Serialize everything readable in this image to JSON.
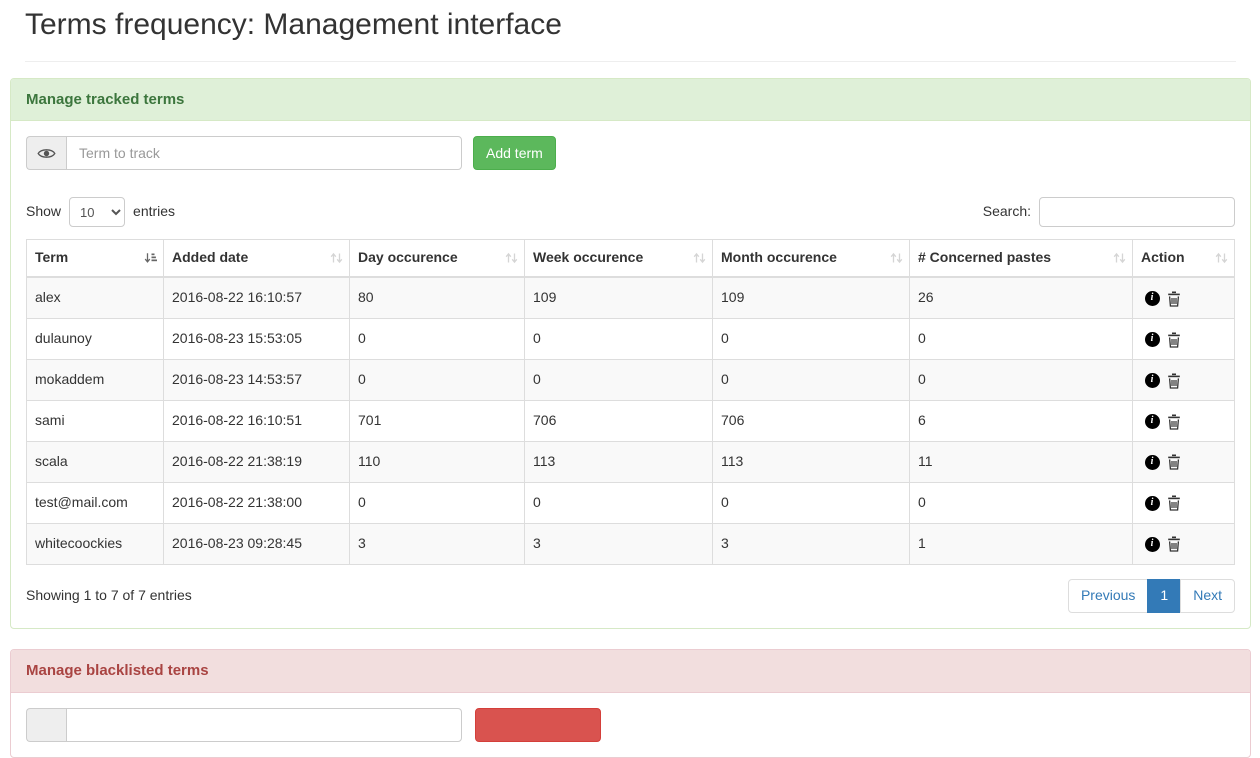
{
  "page": {
    "title": "Terms frequency: Management interface"
  },
  "tracked_panel": {
    "heading": "Manage tracked terms",
    "term_placeholder": "Term to track",
    "add_button_label": "Add term"
  },
  "table": {
    "show_label": "Show",
    "entries_label": "entries",
    "page_length": "10",
    "search_label": "Search:",
    "search_value": "",
    "columns": [
      {
        "label": "Term",
        "sort": "asc"
      },
      {
        "label": "Added date",
        "sort": "none"
      },
      {
        "label": "Day occurence",
        "sort": "none"
      },
      {
        "label": "Week occurence",
        "sort": "none"
      },
      {
        "label": "Month occurence",
        "sort": "none"
      },
      {
        "label": "# Concerned pastes",
        "sort": "none"
      },
      {
        "label": "Action",
        "sort": "none"
      }
    ],
    "rows": [
      {
        "term": "alex",
        "added_date": "2016-08-22 16:10:57",
        "day": "80",
        "week": "109",
        "month": "109",
        "pastes": "26"
      },
      {
        "term": "dulaunoy",
        "added_date": "2016-08-23 15:53:05",
        "day": "0",
        "week": "0",
        "month": "0",
        "pastes": "0"
      },
      {
        "term": "mokaddem",
        "added_date": "2016-08-23 14:53:57",
        "day": "0",
        "week": "0",
        "month": "0",
        "pastes": "0"
      },
      {
        "term": "sami",
        "added_date": "2016-08-22 16:10:51",
        "day": "701",
        "week": "706",
        "month": "706",
        "pastes": "6"
      },
      {
        "term": "scala",
        "added_date": "2016-08-22 21:38:19",
        "day": "110",
        "week": "113",
        "month": "113",
        "pastes": "11"
      },
      {
        "term": "test@mail.com",
        "added_date": "2016-08-22 21:38:00",
        "day": "0",
        "week": "0",
        "month": "0",
        "pastes": "0"
      },
      {
        "term": "whitecoockies",
        "added_date": "2016-08-23 09:28:45",
        "day": "3",
        "week": "3",
        "month": "3",
        "pastes": "1"
      }
    ],
    "action_icons": [
      "info-icon",
      "trash-icon"
    ],
    "info_text": "Showing 1 to 7 of 7 entries",
    "pagination": {
      "previous_label": "Previous",
      "active_page": "1",
      "next_label": "Next"
    }
  },
  "blacklist_panel": {
    "heading": "Manage blacklisted terms"
  },
  "colors": {
    "success_text": "#3c763d",
    "success_bg": "#dff0d8",
    "success_border": "#d6e9c6",
    "danger_text": "#a94442",
    "danger_bg": "#f2dede",
    "danger_border": "#ebccd1",
    "add_button_bg": "#5cb85c",
    "blacklist_button_bg": "#d9534f",
    "pagination_active_bg": "#337ab7",
    "stripe_bg": "#f9f9f9",
    "table_border": "#dddddd"
  }
}
